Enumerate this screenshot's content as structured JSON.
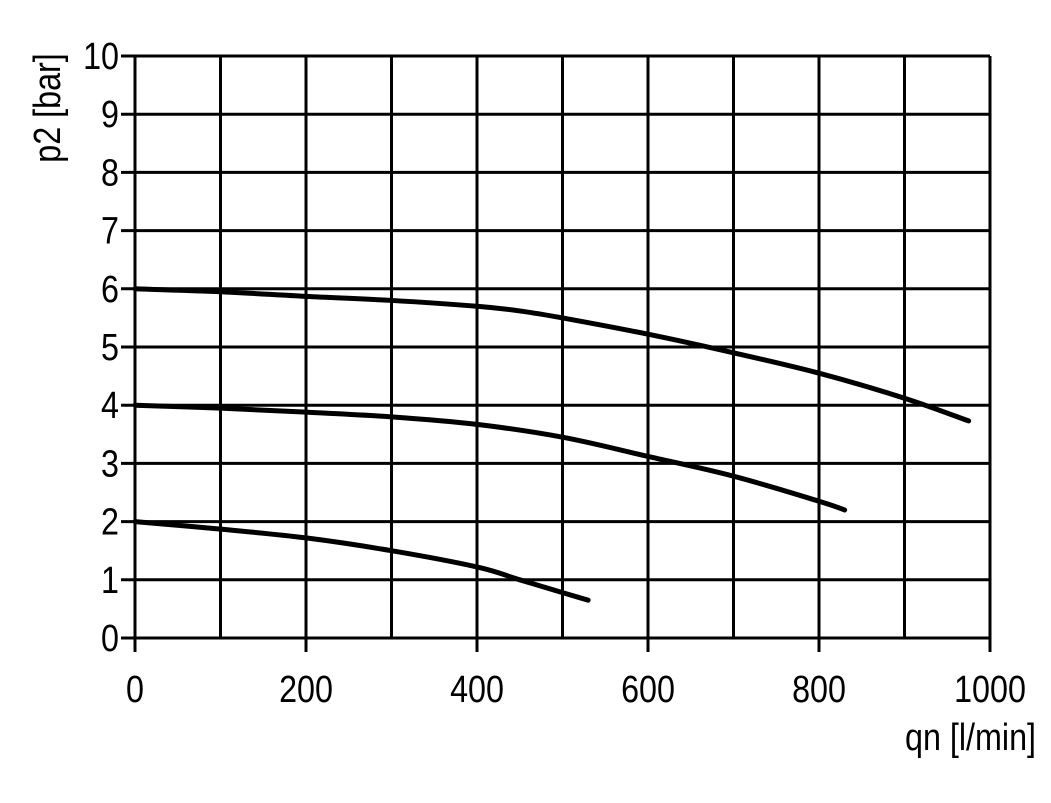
{
  "chart_data": {
    "type": "line",
    "title": "",
    "xlabel": "qn [l/min]",
    "ylabel": "p2 [bar]",
    "xlim": [
      0,
      1000
    ],
    "ylim": [
      0,
      10
    ],
    "xticks": [
      0,
      200,
      400,
      600,
      800,
      1000
    ],
    "xtick_labels": [
      "0",
      "200",
      "400",
      "600",
      "800",
      "1000"
    ],
    "yticks": [
      0,
      1,
      2,
      3,
      4,
      5,
      6,
      7,
      8,
      9,
      10
    ],
    "ytick_labels": [
      "0",
      "1",
      "2",
      "3",
      "4",
      "5",
      "6",
      "7",
      "8",
      "9",
      "10"
    ],
    "x_grid_step": 100,
    "y_grid_step": 1,
    "grid": true,
    "line_color": "#000000",
    "series": [
      {
        "x": [
          0,
          100,
          200,
          300,
          400,
          450,
          500,
          600,
          700,
          800,
          900,
          975
        ],
        "y": [
          6.0,
          5.95,
          5.87,
          5.8,
          5.7,
          5.62,
          5.5,
          5.22,
          4.9,
          4.55,
          4.12,
          3.73
        ]
      },
      {
        "x": [
          0,
          100,
          200,
          300,
          400,
          500,
          600,
          700,
          800,
          830
        ],
        "y": [
          4.0,
          3.95,
          3.88,
          3.8,
          3.67,
          3.45,
          3.12,
          2.78,
          2.35,
          2.2
        ]
      },
      {
        "x": [
          0,
          100,
          200,
          300,
          400,
          450,
          500,
          530
        ],
        "y": [
          2.0,
          1.87,
          1.72,
          1.5,
          1.22,
          1.0,
          0.78,
          0.65
        ]
      }
    ]
  }
}
